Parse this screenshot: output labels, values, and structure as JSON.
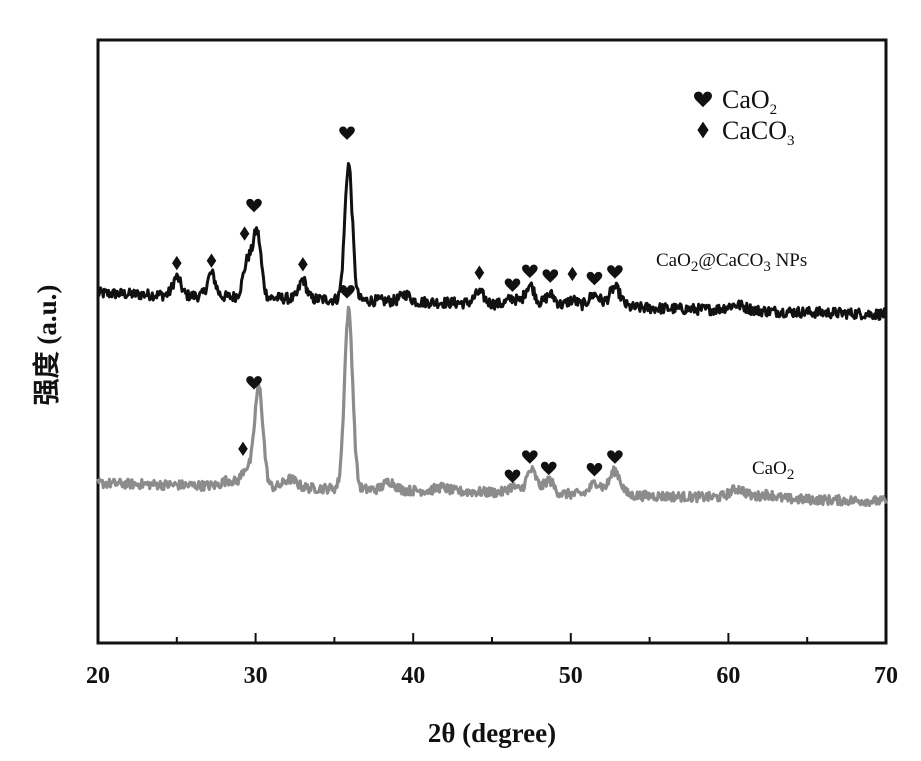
{
  "chart_data": {
    "type": "line",
    "xlabel": "2θ (degree)",
    "ylabel": "强度 (a.u.)",
    "xlim": [
      20,
      70
    ],
    "ylim": [
      0,
      100
    ],
    "xticks": [
      20,
      30,
      40,
      50,
      60,
      70
    ],
    "grid": false,
    "colors": {
      "axis": "#111111",
      "heart_marker": "#111111",
      "diamond_marker": "#111111"
    },
    "legend": {
      "placement": "top-right",
      "entries": [
        {
          "symbol": "heart",
          "label": "CaO",
          "sub": "2"
        },
        {
          "symbol": "diamond",
          "label": "CaCO",
          "sub": "3"
        }
      ]
    },
    "series": [
      {
        "name": "CaO@CaCO NPs",
        "label_main": "CaO",
        "label_sub1": "2",
        "label_mid": "@CaCO",
        "label_sub2": "3",
        "label_end": " NPs",
        "color": "#111111",
        "baseline": 58,
        "baseline_end": 54.5,
        "noise": 0.9,
        "peaks": [
          {
            "x": 25.0,
            "h": 3.0,
            "w": 0.25
          },
          {
            "x": 27.2,
            "h": 3.8,
            "w": 0.25
          },
          {
            "x": 29.5,
            "h": 6.0,
            "w": 0.28
          },
          {
            "x": 30.1,
            "h": 10.5,
            "w": 0.25
          },
          {
            "x": 33.0,
            "h": 3.2,
            "w": 0.22
          },
          {
            "x": 35.9,
            "h": 22.5,
            "w": 0.24
          },
          {
            "x": 39.5,
            "h": 1.2,
            "w": 0.3
          },
          {
            "x": 44.2,
            "h": 1.8,
            "w": 0.3
          },
          {
            "x": 46.3,
            "h": 1.0,
            "w": 0.3
          },
          {
            "x": 47.4,
            "h": 3.3,
            "w": 0.3
          },
          {
            "x": 48.7,
            "h": 1.8,
            "w": 0.3
          },
          {
            "x": 50.1,
            "h": 1.0,
            "w": 0.3
          },
          {
            "x": 51.5,
            "h": 2.0,
            "w": 0.35
          },
          {
            "x": 52.8,
            "h": 3.2,
            "w": 0.35
          },
          {
            "x": 60.5,
            "h": 0.9,
            "w": 0.6
          }
        ],
        "markers": [
          {
            "x": 25.0,
            "y": 63.0,
            "symbol": "diamond"
          },
          {
            "x": 27.2,
            "y": 63.4,
            "symbol": "diamond"
          },
          {
            "x": 29.3,
            "y": 67.9,
            "symbol": "diamond"
          },
          {
            "x": 29.9,
            "y": 72.6,
            "symbol": "heart"
          },
          {
            "x": 33.0,
            "y": 62.8,
            "symbol": "diamond"
          },
          {
            "x": 35.8,
            "y": 84.6,
            "symbol": "heart"
          },
          {
            "x": 44.2,
            "y": 61.4,
            "symbol": "diamond"
          },
          {
            "x": 46.3,
            "y": 59.4,
            "symbol": "heart"
          },
          {
            "x": 47.4,
            "y": 61.7,
            "symbol": "heart"
          },
          {
            "x": 48.7,
            "y": 60.9,
            "symbol": "heart"
          },
          {
            "x": 50.1,
            "y": 61.2,
            "symbol": "diamond"
          },
          {
            "x": 51.5,
            "y": 60.5,
            "symbol": "heart"
          },
          {
            "x": 52.8,
            "y": 61.6,
            "symbol": "heart"
          }
        ]
      },
      {
        "name": "CaO",
        "label_main": "CaO",
        "label_sub1": "2",
        "color": "#8c8c8c",
        "baseline": 26.5,
        "baseline_end": 23.5,
        "noise": 0.8,
        "peaks": [
          {
            "x": 28.3,
            "h": 1.0,
            "w": 0.4
          },
          {
            "x": 29.4,
            "h": 3.0,
            "w": 0.3
          },
          {
            "x": 30.2,
            "h": 16.5,
            "w": 0.27
          },
          {
            "x": 32.2,
            "h": 1.4,
            "w": 0.4
          },
          {
            "x": 35.9,
            "h": 29.5,
            "w": 0.26
          },
          {
            "x": 38.5,
            "h": 1.4,
            "w": 0.35
          },
          {
            "x": 41.8,
            "h": 0.6,
            "w": 0.4
          },
          {
            "x": 46.3,
            "h": 1.0,
            "w": 0.3
          },
          {
            "x": 47.5,
            "h": 3.8,
            "w": 0.32
          },
          {
            "x": 48.6,
            "h": 2.2,
            "w": 0.3
          },
          {
            "x": 51.6,
            "h": 2.0,
            "w": 0.35
          },
          {
            "x": 52.8,
            "h": 4.0,
            "w": 0.35
          },
          {
            "x": 60.6,
            "h": 1.5,
            "w": 0.5
          },
          {
            "x": 62.5,
            "h": 0.7,
            "w": 0.5
          }
        ],
        "markers": [
          {
            "x": 29.2,
            "y": 32.2,
            "symbol": "diamond"
          },
          {
            "x": 29.9,
            "y": 43.2,
            "symbol": "heart"
          },
          {
            "x": 35.8,
            "y": 58.3,
            "symbol": "heart"
          },
          {
            "x": 46.3,
            "y": 27.7,
            "symbol": "heart"
          },
          {
            "x": 47.4,
            "y": 30.9,
            "symbol": "heart"
          },
          {
            "x": 48.6,
            "y": 29.0,
            "symbol": "heart"
          },
          {
            "x": 51.5,
            "y": 28.8,
            "symbol": "heart"
          },
          {
            "x": 52.8,
            "y": 30.9,
            "symbol": "heart"
          }
        ]
      }
    ]
  }
}
